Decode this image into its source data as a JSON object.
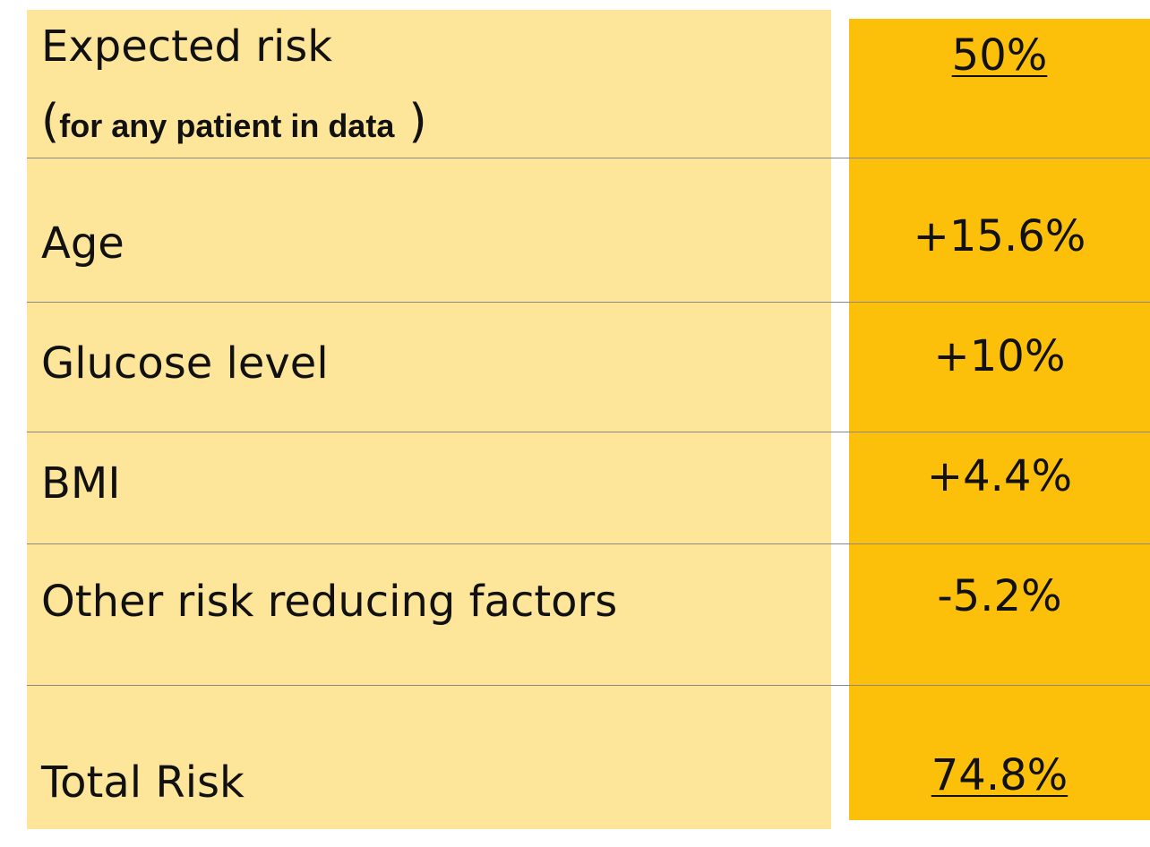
{
  "rows": [
    {
      "label": "Expected risk",
      "note_open": "(",
      "note": "for any patient in data",
      "note_close": ")",
      "value": "50%"
    },
    {
      "label": "Age",
      "value": "+15.6%"
    },
    {
      "label": "Glucose level",
      "value": "+10%"
    },
    {
      "label": "BMI",
      "value": "+4.4%"
    },
    {
      "label": "Other risk reducing factors",
      "value": "-5.2%"
    },
    {
      "label": "Total Risk",
      "value": "74.8%"
    }
  ],
  "colors": {
    "label_background": "#fde699",
    "value_background": "#fdc00a",
    "divider": "#8a8a8a"
  }
}
